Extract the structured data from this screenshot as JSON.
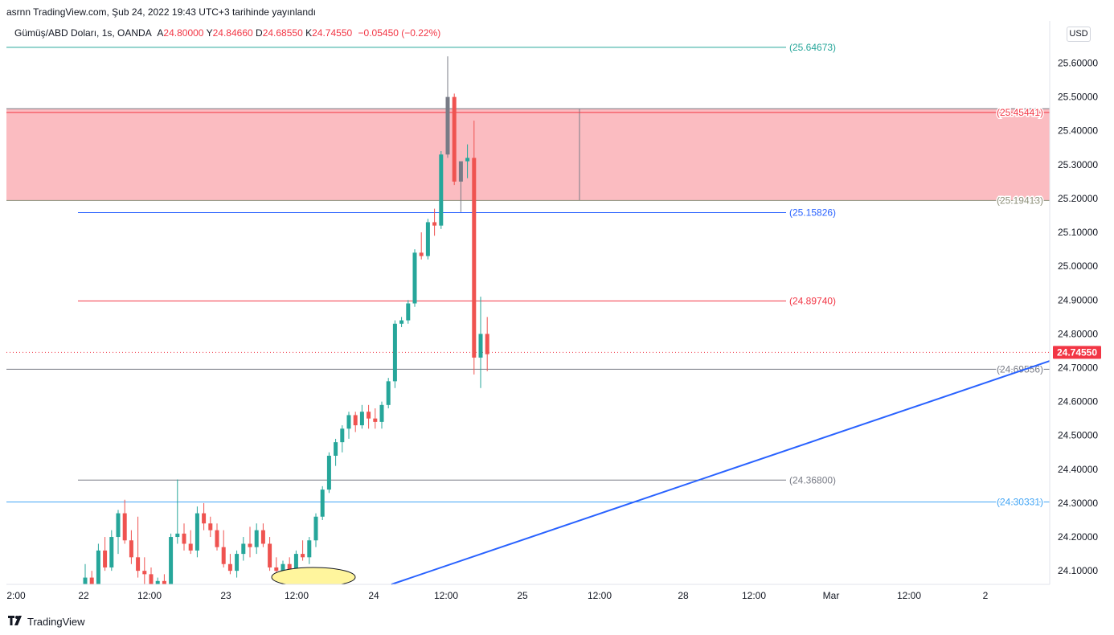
{
  "header": {
    "published": "asrnn TradingView.com, Şub 24, 2022 19:43 UTC+3 tarihinde yayınlandı"
  },
  "chart_data": {
    "type": "candlestick",
    "symbol": "Gümüş/ABD Doları, 1s, OANDA",
    "ohlc_label": {
      "a": "A",
      "y": "Y",
      "d": "D",
      "k": "K"
    },
    "ohlc": {
      "open": "24.80000",
      "high": "24.84660",
      "low": "24.68550",
      "close": "24.74550",
      "change": "−0.05450 (−0.22%)"
    },
    "currency": "USD",
    "last_price": 24.7455,
    "last_price_label": "24.74550",
    "ylim": [
      24.06,
      25.72
    ],
    "y_ticks": [
      "25.60000",
      "25.50000",
      "25.40000",
      "25.30000",
      "25.20000",
      "25.10000",
      "25.00000",
      "24.90000",
      "24.80000",
      "24.70000",
      "24.60000",
      "24.50000",
      "24.40000",
      "24.30000",
      "24.20000",
      "24.10000"
    ],
    "x_ticks": [
      "2:00",
      "22",
      "12:00",
      "23",
      "12:00",
      "24",
      "12:00",
      "25",
      "12:00",
      "28",
      "12:00",
      "Mar",
      "12:00",
      "2"
    ],
    "levels": [
      {
        "value": 25.64673,
        "label": "(25.64673)",
        "color": "#26a69a",
        "extend": false
      },
      {
        "value": 25.45441,
        "label": "(25.45441)",
        "color": "#f23645",
        "extend": true
      },
      {
        "value": 25.19413,
        "label": "(25.19413)",
        "color": "#8d8f79",
        "extend": true
      },
      {
        "value": 25.15826,
        "label": "(25.15826)",
        "color": "#2962ff",
        "extend": false
      },
      {
        "value": 24.8974,
        "label": "(24.89740)",
        "color": "#f23645",
        "extend": false
      },
      {
        "value": 24.69556,
        "label": "(24.69556)",
        "color": "#787b86",
        "extend": true
      },
      {
        "value": 24.368,
        "label": "(24.36800)",
        "color": "#787b86",
        "extend": false
      },
      {
        "value": 24.30331,
        "label": "(24.30331)",
        "color": "#42a5f5",
        "extend": true
      }
    ],
    "zone": {
      "top": 25.4654,
      "bottom": 25.19413,
      "color": "#fbb8be"
    },
    "trendline": {
      "from": [
        24.06,
        "24 03:00"
      ],
      "to": [
        24.72,
        "2 Mar 09:00"
      ],
      "color": "#2962ff"
    },
    "candles": [
      [
        24.06,
        24.12,
        24.03,
        24.08
      ],
      [
        24.08,
        24.1,
        24.03,
        24.05
      ],
      [
        24.05,
        24.18,
        24.04,
        24.16
      ],
      [
        24.16,
        24.2,
        24.1,
        24.11
      ],
      [
        24.11,
        24.22,
        24.1,
        24.2
      ],
      [
        24.2,
        24.28,
        24.15,
        24.27
      ],
      [
        24.27,
        24.31,
        24.18,
        24.19
      ],
      [
        24.19,
        24.22,
        24.12,
        24.14
      ],
      [
        24.14,
        24.26,
        24.08,
        24.1
      ],
      [
        24.1,
        24.14,
        24.05,
        24.09
      ],
      [
        24.09,
        24.11,
        24.04,
        24.06
      ],
      [
        24.06,
        24.08,
        24.03,
        24.07
      ],
      [
        24.07,
        24.09,
        24.04,
        24.05
      ],
      [
        24.05,
        24.21,
        24.04,
        24.2
      ],
      [
        24.2,
        24.37,
        24.18,
        24.21
      ],
      [
        24.21,
        24.24,
        24.16,
        24.18
      ],
      [
        24.18,
        24.22,
        24.15,
        24.16
      ],
      [
        24.16,
        24.29,
        24.14,
        24.27
      ],
      [
        24.27,
        24.3,
        24.22,
        24.24
      ],
      [
        24.24,
        24.26,
        24.2,
        24.22
      ],
      [
        24.22,
        24.24,
        24.16,
        24.17
      ],
      [
        24.17,
        24.22,
        24.11,
        24.12
      ],
      [
        24.12,
        24.15,
        24.09,
        24.1
      ],
      [
        24.1,
        24.16,
        24.08,
        24.15
      ],
      [
        24.15,
        24.2,
        24.13,
        24.18
      ],
      [
        24.18,
        24.23,
        24.14,
        24.17
      ],
      [
        24.17,
        24.24,
        24.15,
        24.22
      ],
      [
        24.22,
        24.24,
        24.17,
        24.18
      ],
      [
        24.18,
        24.2,
        24.1,
        24.11
      ],
      [
        24.11,
        24.14,
        24.08,
        24.1
      ],
      [
        24.1,
        24.13,
        24.08,
        24.12
      ],
      [
        24.12,
        24.14,
        24.09,
        24.1
      ],
      [
        24.1,
        24.16,
        24.08,
        24.15
      ],
      [
        24.15,
        24.19,
        24.13,
        24.14
      ],
      [
        24.14,
        24.2,
        24.12,
        24.19
      ],
      [
        24.19,
        24.27,
        24.17,
        24.26
      ],
      [
        24.26,
        24.35,
        24.25,
        24.34
      ],
      [
        24.34,
        24.45,
        24.33,
        24.44
      ],
      [
        24.44,
        24.49,
        24.41,
        24.48
      ],
      [
        24.48,
        24.53,
        24.45,
        24.52
      ],
      [
        24.52,
        24.57,
        24.49,
        24.56
      ],
      [
        24.56,
        24.57,
        24.51,
        24.53
      ],
      [
        24.53,
        24.59,
        24.52,
        24.57
      ],
      [
        24.57,
        24.59,
        24.52,
        24.55
      ],
      [
        24.55,
        24.58,
        24.52,
        24.54
      ],
      [
        24.54,
        24.6,
        24.52,
        24.59
      ],
      [
        24.59,
        24.67,
        24.58,
        24.66
      ],
      [
        24.66,
        24.84,
        24.64,
        24.83
      ],
      [
        24.83,
        24.85,
        24.82,
        24.84
      ],
      [
        24.84,
        24.9,
        24.83,
        24.89
      ],
      [
        24.89,
        25.05,
        24.88,
        25.04
      ],
      [
        25.04,
        25.1,
        25.02,
        25.03
      ],
      [
        25.03,
        25.14,
        25.02,
        25.13
      ],
      [
        25.13,
        25.17,
        25.09,
        25.12
      ],
      [
        25.12,
        25.34,
        25.11,
        25.33
      ],
      [
        25.33,
        25.62,
        25.32,
        25.5
      ],
      [
        25.5,
        25.51,
        25.24,
        25.25
      ],
      [
        25.25,
        25.3,
        25.16,
        25.31
      ],
      [
        25.31,
        25.36,
        25.26,
        25.32
      ],
      [
        25.32,
        25.43,
        24.68,
        24.73
      ],
      [
        24.73,
        24.91,
        24.64,
        24.8
      ],
      [
        24.8,
        24.85,
        24.69,
        24.74
      ]
    ]
  }
}
